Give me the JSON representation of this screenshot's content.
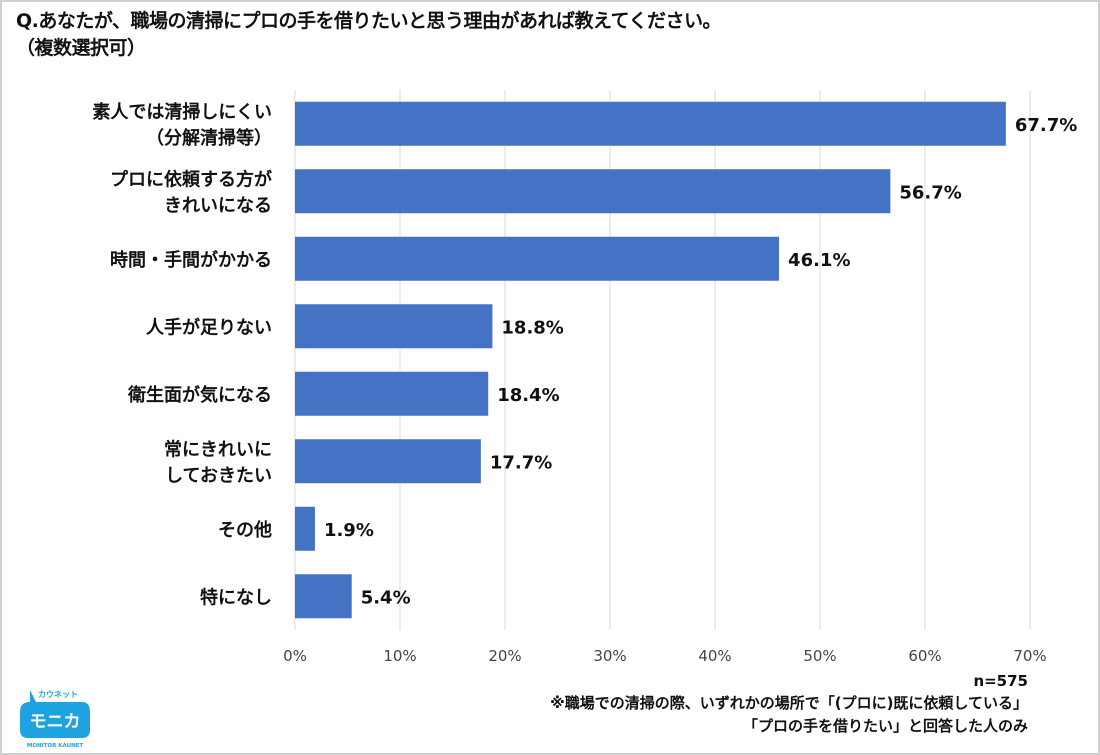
{
  "title": {
    "line1": "Q.あなたが、職場の清掃にプロの手を借りたいと思う理由があれば教えてください。",
    "line2": "（複数選択可）"
  },
  "footer": {
    "n": "n=575",
    "note1": "※職場での清掃の際、いずれかの場所で「(プロに)既に依頼している」",
    "note2": "「プロの手を借りたい」と回答した人のみ"
  },
  "logo": {
    "top": "カウネット",
    "main": "モニカ",
    "bottom": "MONITOR KAUNET"
  },
  "colors": {
    "bar": "#4472c4",
    "grid": "#d9d9d9",
    "logo": "#1fa3e0"
  },
  "chart_data": {
    "type": "bar",
    "orientation": "horizontal",
    "categories": [
      [
        "素人では清掃しにくい",
        "（分解清掃等）"
      ],
      [
        "プロに依頼する方が",
        "きれいになる"
      ],
      [
        "時間・手間がかかる"
      ],
      [
        "人手が足りない"
      ],
      [
        "衛生面が気になる"
      ],
      [
        "常にきれいに",
        "しておきたい"
      ],
      [
        "その他"
      ],
      [
        "特になし"
      ]
    ],
    "values": [
      67.7,
      56.7,
      46.1,
      18.8,
      18.4,
      17.7,
      1.9,
      5.4
    ],
    "value_labels": [
      "67.7%",
      "56.7%",
      "46.1%",
      "18.8%",
      "18.4%",
      "17.7%",
      "1.9%",
      "5.4%"
    ],
    "xlim": [
      0,
      70
    ],
    "xticks": [
      "0%",
      "10%",
      "20%",
      "30%",
      "40%",
      "50%",
      "60%",
      "70%"
    ],
    "grid": true,
    "legend": "none"
  }
}
